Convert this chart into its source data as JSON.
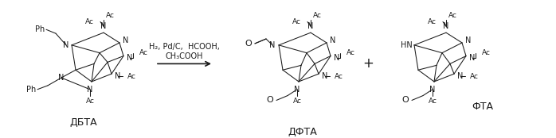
{
  "bg_color": "#ffffff",
  "fig_width": 6.98,
  "fig_height": 1.74,
  "dpi": 100,
  "label_dbta": "ДБТА",
  "label_dfta": "ДФТА",
  "label_fta": "ФТА",
  "reaction_conditions_1": "H₂, Pd/C,  HCOOH,",
  "reaction_conditions_2": "CH₃COOH",
  "plus_sign": "+",
  "text_color": "#1a1a1a",
  "struct_color": "#1a1a1a",
  "line_width": 0.75
}
